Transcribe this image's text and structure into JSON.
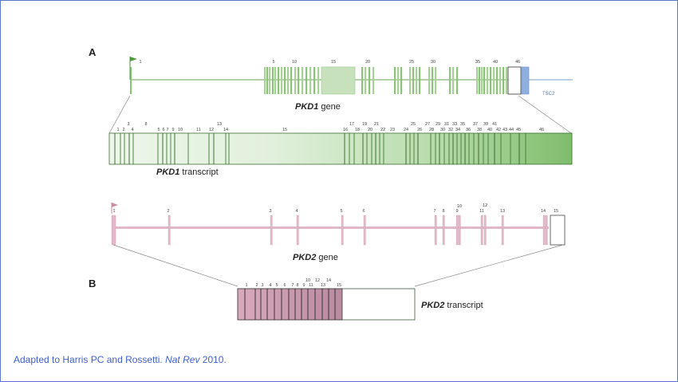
{
  "panels": {
    "a": "A",
    "b": "B"
  },
  "pkd1_gene": {
    "name": "PKD1",
    "suffix": " gene",
    "neighbor": "TSC2",
    "exon_numbers": [
      "1",
      "5",
      "10",
      "15",
      "20",
      "25",
      "30",
      "35",
      "40",
      "46"
    ]
  },
  "pkd1_transcript": {
    "name": "PKD1",
    "suffix": " transcript",
    "exon_numbers": [
      "1",
      "2",
      "3",
      "4",
      "5",
      "6",
      "7",
      "8",
      "9",
      "10",
      "11",
      "12",
      "13",
      "14",
      "15",
      "16",
      "17",
      "18",
      "19",
      "20",
      "21",
      "22",
      "23",
      "24",
      "25",
      "26",
      "27",
      "28",
      "29",
      "30",
      "31",
      "32",
      "33",
      "34",
      "35",
      "36",
      "37",
      "38",
      "39",
      "40",
      "41",
      "42",
      "43",
      "44",
      "45",
      "46"
    ]
  },
  "pkd2_gene": {
    "name": "PKD2",
    "suffix": " gene",
    "exon_numbers": [
      "1",
      "2",
      "3",
      "4",
      "5",
      "6",
      "7",
      "8",
      "9",
      "10",
      "11",
      "12",
      "13",
      "14",
      "15"
    ]
  },
  "pkd2_transcript": {
    "name": "PKD2",
    "suffix": " transcript",
    "exon_numbers": [
      "1",
      "2",
      "3",
      "4",
      "5",
      "6",
      "7",
      "8",
      "9",
      "10",
      "11",
      "12",
      "13",
      "14",
      "15"
    ]
  },
  "caption": {
    "prefix": "Adapted to Harris PC and Rossetti. ",
    "journal": "Nat Rev",
    "suffix": " 2010."
  },
  "colors": {
    "pkd1_green": "#4e9a3c",
    "pkd2_pink": "#c98ea4",
    "tsc2_blue": "#5a7ab5",
    "caption_blue": "#3f5fcf",
    "frame_blue": "#5b78c8"
  },
  "icons": {
    "promoter": "promoter-flag-icon"
  }
}
